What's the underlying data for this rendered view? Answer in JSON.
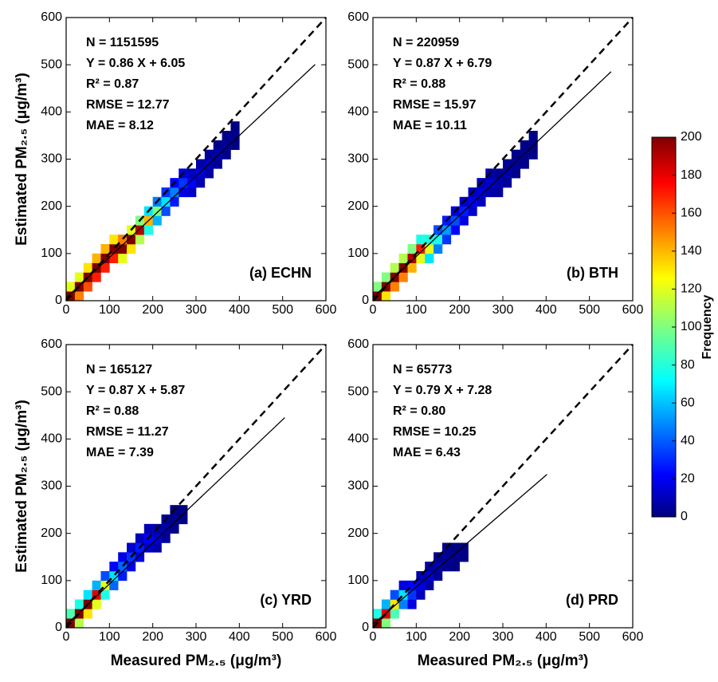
{
  "chart_data": [
    {
      "type": "scatter",
      "label": "(a) ECHN",
      "ylabel": "Estimated PM₂.₅ (μg/m³)",
      "annotations": [
        "N = 1151595",
        "Y = 0.86 X + 6.05",
        "R² = 0.87",
        "RMSE = 12.77",
        "MAE = 8.12"
      ],
      "fit": {
        "slope": 0.86,
        "intercept": 6.05,
        "x_end": 575
      },
      "x": [
        10,
        10,
        30,
        30,
        30,
        50,
        50,
        50,
        70,
        70,
        70,
        90,
        90,
        90,
        110,
        110,
        110,
        130,
        130,
        130,
        150,
        150,
        150,
        170,
        170,
        170,
        190,
        190,
        190,
        210,
        210,
        210,
        230,
        230,
        230,
        250,
        250,
        250,
        270,
        270,
        270,
        290,
        290,
        290,
        310,
        310,
        310,
        330,
        330,
        330,
        350,
        350,
        350,
        370,
        370,
        370,
        390,
        390,
        390
      ],
      "y": [
        10,
        30,
        10,
        30,
        50,
        30,
        50,
        70,
        50,
        70,
        90,
        70,
        90,
        110,
        90,
        110,
        130,
        90,
        110,
        130,
        110,
        130,
        150,
        130,
        150,
        170,
        150,
        170,
        190,
        170,
        190,
        210,
        190,
        210,
        230,
        210,
        230,
        250,
        230,
        250,
        270,
        230,
        250,
        270,
        250,
        270,
        290,
        270,
        290,
        310,
        290,
        310,
        330,
        310,
        330,
        350,
        330,
        350,
        370
      ],
      "values": [
        200,
        120,
        150,
        200,
        120,
        160,
        200,
        130,
        170,
        200,
        140,
        170,
        200,
        140,
        170,
        200,
        130,
        120,
        200,
        150,
        130,
        200,
        120,
        110,
        190,
        100,
        80,
        140,
        70,
        60,
        100,
        50,
        40,
        70,
        35,
        30,
        50,
        25,
        20,
        35,
        18,
        15,
        25,
        12,
        10,
        18,
        8,
        7,
        12,
        5,
        4,
        8,
        3,
        3,
        5,
        2,
        1,
        2,
        1
      ],
      "xlim": [
        0,
        600
      ],
      "ylim": [
        0,
        600
      ],
      "xticks": [
        0,
        100,
        200,
        300,
        400,
        500,
        600
      ],
      "yticks": [
        0,
        100,
        200,
        300,
        400,
        500,
        600
      ]
    },
    {
      "type": "scatter",
      "label": "(b) BTH",
      "annotations": [
        "N = 220959",
        "Y = 0.87 X + 6.79",
        "R² = 0.88",
        "RMSE = 15.97",
        "MAE = 10.11"
      ],
      "fit": {
        "slope": 0.87,
        "intercept": 6.79,
        "x_end": 550
      },
      "x": [
        10,
        10,
        30,
        30,
        30,
        50,
        50,
        50,
        70,
        70,
        70,
        90,
        90,
        90,
        110,
        110,
        110,
        130,
        130,
        130,
        150,
        150,
        150,
        170,
        170,
        170,
        190,
        190,
        190,
        210,
        210,
        210,
        230,
        230,
        230,
        250,
        250,
        250,
        270,
        270,
        270,
        290,
        290,
        290,
        310,
        310,
        310,
        330,
        330,
        330,
        350,
        350,
        350,
        370,
        370,
        370
      ],
      "y": [
        10,
        30,
        10,
        30,
        50,
        30,
        50,
        70,
        50,
        70,
        90,
        70,
        90,
        110,
        90,
        110,
        130,
        90,
        110,
        130,
        110,
        130,
        150,
        130,
        150,
        170,
        150,
        170,
        190,
        170,
        190,
        210,
        190,
        210,
        230,
        210,
        230,
        250,
        230,
        250,
        270,
        230,
        250,
        270,
        250,
        270,
        290,
        270,
        290,
        310,
        290,
        310,
        330,
        310,
        330,
        350
      ],
      "values": [
        200,
        100,
        130,
        200,
        100,
        150,
        200,
        110,
        150,
        200,
        110,
        140,
        190,
        100,
        120,
        170,
        80,
        70,
        120,
        80,
        50,
        80,
        40,
        35,
        55,
        30,
        25,
        40,
        20,
        20,
        30,
        15,
        15,
        22,
        12,
        12,
        18,
        10,
        9,
        14,
        7,
        6,
        10,
        5,
        5,
        8,
        4,
        3,
        5,
        2,
        2,
        3,
        1,
        1,
        2,
        1
      ],
      "xlim": [
        0,
        600
      ],
      "ylim": [
        0,
        600
      ],
      "xticks": [
        0,
        100,
        200,
        300,
        400,
        500,
        600
      ],
      "yticks": [
        0,
        100,
        200,
        300,
        400,
        500,
        600
      ]
    },
    {
      "type": "scatter",
      "label": "(c) YRD",
      "ylabel": "Estimated PM₂.₅ (μg/m³)",
      "xlabel": "Measured PM₂.₅ (μg/m³)",
      "annotations": [
        "N = 165127",
        "Y = 0.87 X + 5.87",
        "R² = 0.88",
        "RMSE = 11.27",
        "MAE = 7.39"
      ],
      "fit": {
        "slope": 0.87,
        "intercept": 5.87,
        "x_end": 505
      },
      "x": [
        10,
        10,
        30,
        30,
        30,
        50,
        50,
        50,
        70,
        70,
        70,
        90,
        90,
        90,
        110,
        110,
        110,
        130,
        130,
        130,
        150,
        150,
        150,
        170,
        170,
        170,
        190,
        190,
        190,
        210,
        210,
        210,
        230,
        230,
        230,
        250,
        250,
        250,
        270,
        270
      ],
      "y": [
        10,
        30,
        10,
        30,
        50,
        30,
        50,
        70,
        50,
        70,
        90,
        70,
        90,
        110,
        90,
        110,
        130,
        110,
        130,
        150,
        130,
        150,
        170,
        150,
        170,
        190,
        170,
        190,
        210,
        170,
        190,
        210,
        190,
        210,
        230,
        210,
        230,
        250,
        230,
        250
      ],
      "values": [
        200,
        90,
        110,
        200,
        80,
        130,
        200,
        70,
        120,
        180,
        60,
        80,
        120,
        40,
        45,
        70,
        25,
        30,
        45,
        20,
        22,
        35,
        15,
        18,
        30,
        12,
        15,
        25,
        10,
        8,
        14,
        8,
        5,
        8,
        4,
        2,
        3,
        1,
        1,
        1
      ],
      "xlim": [
        0,
        600
      ],
      "ylim": [
        0,
        600
      ],
      "xticks": [
        0,
        100,
        200,
        300,
        400,
        500,
        600
      ],
      "yticks": [
        0,
        100,
        200,
        300,
        400,
        500,
        600
      ]
    },
    {
      "type": "scatter",
      "label": "(d) PRD",
      "xlabel": "Measured PM₂.₅ (μg/m³)",
      "annotations": [
        "N = 65773",
        "Y = 0.79 X + 7.28",
        "R² = 0.80",
        "RMSE = 10.25",
        "MAE = 6.43"
      ],
      "fit": {
        "slope": 0.79,
        "intercept": 7.28,
        "x_end": 402
      },
      "x": [
        10,
        10,
        30,
        30,
        30,
        50,
        50,
        50,
        70,
        70,
        70,
        90,
        90,
        90,
        110,
        110,
        110,
        130,
        130,
        130,
        150,
        150,
        150,
        170,
        170,
        170,
        190,
        190,
        190,
        210,
        210
      ],
      "y": [
        10,
        30,
        10,
        30,
        50,
        30,
        50,
        70,
        50,
        70,
        90,
        50,
        70,
        90,
        70,
        90,
        110,
        90,
        110,
        130,
        110,
        130,
        150,
        130,
        150,
        170,
        130,
        150,
        170,
        150,
        170
      ],
      "values": [
        200,
        80,
        100,
        180,
        60,
        90,
        130,
        40,
        50,
        70,
        20,
        20,
        35,
        25,
        12,
        20,
        10,
        8,
        14,
        6,
        5,
        8,
        3,
        3,
        5,
        2,
        1,
        2,
        1,
        1,
        1
      ],
      "xlim": [
        0,
        600
      ],
      "ylim": [
        0,
        600
      ],
      "xticks": [
        0,
        100,
        200,
        300,
        400,
        500,
        600
      ],
      "yticks": [
        0,
        100,
        200,
        300,
        400,
        500,
        600
      ]
    }
  ],
  "colorbar": {
    "label": "Frequency",
    "lim": [
      0,
      200
    ],
    "ticks": [
      0,
      20,
      40,
      60,
      80,
      100,
      120,
      140,
      160,
      180,
      200
    ]
  }
}
